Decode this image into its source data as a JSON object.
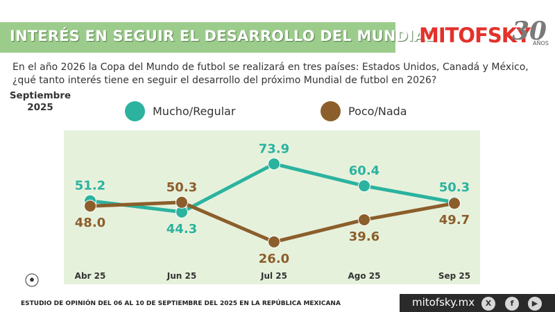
{
  "header": {
    "title": "INTERÉS EN SEGUIR EL DESARROLLO DEL MUNDIAL",
    "logo_text": "MITOFSKY",
    "logo_number": "30",
    "logo_sub": "AÑOS"
  },
  "question": "En el año 2026 la Copa del Mundo de futbol se realizará en tres países: Estados Unidos, Canadá y México, ¿qué tanto interés tiene en seguir el desarrollo del próximo Mundial de futbol en 2026?",
  "period": "Septiembre 2025",
  "colors": {
    "mucho": "#2bb39f",
    "poco": "#8b5e2b",
    "panel": "#e6f1dc",
    "banner": "#9ccc8c",
    "brand": "#e4312b"
  },
  "chart_data": {
    "type": "line",
    "categories": [
      "Abr 25",
      "Jun 25",
      "Jul 25",
      "Ago 25",
      "Sep 25"
    ],
    "series": [
      {
        "name": "Mucho/Regular",
        "values": [
          51.2,
          44.3,
          73.9,
          60.4,
          50.3
        ]
      },
      {
        "name": "Poco/Nada",
        "values": [
          48.0,
          50.3,
          26.0,
          39.6,
          49.7
        ]
      }
    ],
    "grid": false,
    "legend": "top"
  },
  "footer": {
    "note": "ESTUDIO DE OPINIÓN DEL 06 AL 10 DE SEPTIEMBRE DEL 2025 EN LA REPÚBLICA MEXICANA",
    "url": "mitofsky.mx",
    "social": [
      "X",
      "f",
      "▶"
    ]
  }
}
